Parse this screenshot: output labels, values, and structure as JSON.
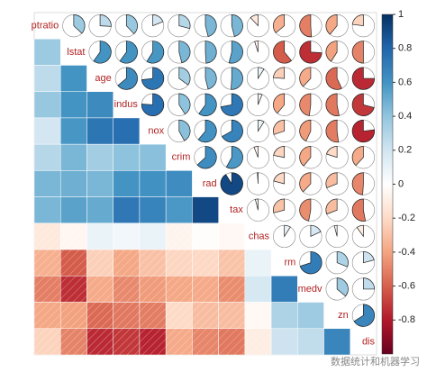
{
  "chart_data": {
    "type": "correlation-matrix",
    "variables": [
      "ptratio",
      "lstat",
      "age",
      "indus",
      "nox",
      "crim",
      "rad",
      "tax",
      "chas",
      "rm",
      "medv",
      "zn",
      "dis"
    ],
    "correlations": [
      [
        0.37
      ],
      [
        0.26,
        0.6
      ],
      [
        0.38,
        0.6,
        0.64
      ],
      [
        0.19,
        0.59,
        0.73,
        0.76
      ],
      [
        0.29,
        0.46,
        0.35,
        0.41,
        0.42
      ],
      [
        0.46,
        0.49,
        0.46,
        0.6,
        0.61,
        0.63
      ],
      [
        0.46,
        0.54,
        0.51,
        0.72,
        0.67,
        0.58,
        0.91
      ],
      [
        -0.12,
        -0.05,
        0.09,
        0.06,
        0.09,
        -0.06,
        -0.01,
        -0.04
      ],
      [
        -0.36,
        -0.61,
        -0.24,
        -0.39,
        -0.3,
        -0.22,
        -0.21,
        -0.29,
        0.09
      ],
      [
        -0.51,
        -0.74,
        -0.38,
        -0.48,
        -0.43,
        -0.39,
        -0.38,
        -0.47,
        0.18,
        0.7
      ],
      [
        -0.39,
        -0.41,
        -0.57,
        -0.53,
        -0.52,
        -0.2,
        -0.31,
        -0.31,
        -0.04,
        0.31,
        0.36
      ],
      [
        -0.23,
        -0.5,
        -0.75,
        -0.71,
        -0.77,
        -0.38,
        -0.49,
        -0.53,
        -0.1,
        0.21,
        0.25,
        0.66
      ]
    ],
    "colors": [
      "#67001F",
      "#B2182B",
      "#D6604D",
      "#F4A582",
      "#FDDBC7",
      "#FFFFFF",
      "#D1E5F0",
      "#92C5DE",
      "#4393C3",
      "#2166AC",
      "#053061"
    ],
    "colorbar_lim": [
      -1,
      1
    ],
    "colorbar_ticks": [
      1,
      0.8,
      0.6,
      0.4,
      0.2,
      0,
      -0.2,
      -0.4,
      -0.6,
      -0.8
    ],
    "watermark": "数据统计和机器学习"
  }
}
